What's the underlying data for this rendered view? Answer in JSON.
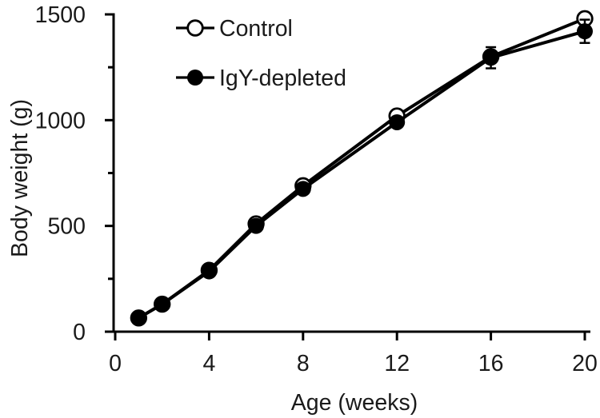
{
  "figure": {
    "background": "#ffffff",
    "ink_color": "#000000",
    "text_color": "#1a1a1a"
  },
  "chart_data": {
    "type": "line",
    "title": "",
    "xlabel": "Age (weeks)",
    "ylabel": "Body weight (g)",
    "xlim": [
      0,
      20
    ],
    "ylim": [
      0,
      1500
    ],
    "x_ticks": [
      0,
      4,
      8,
      12,
      16,
      20
    ],
    "y_ticks_major": [
      0,
      500,
      1000,
      1500
    ],
    "y_ticks_minor": [
      250,
      750,
      1250
    ],
    "grid": false,
    "legend_position": "top-left-inside",
    "x": [
      1,
      2,
      4,
      6,
      8,
      12,
      16,
      20
    ],
    "series": [
      {
        "name": "Control",
        "marker": "open-circle",
        "color": "#000000",
        "values": [
          65,
          130,
          290,
          510,
          690,
          1020,
          1300,
          1480
        ],
        "errors": [
          0,
          0,
          0,
          0,
          0,
          0,
          0,
          0
        ]
      },
      {
        "name": "IgY-depleted",
        "marker": "filled-circle",
        "color": "#000000",
        "values": [
          65,
          130,
          285,
          500,
          675,
          990,
          1295,
          1420
        ],
        "errors": [
          0,
          0,
          0,
          0,
          0,
          0,
          50,
          55
        ]
      }
    ]
  }
}
